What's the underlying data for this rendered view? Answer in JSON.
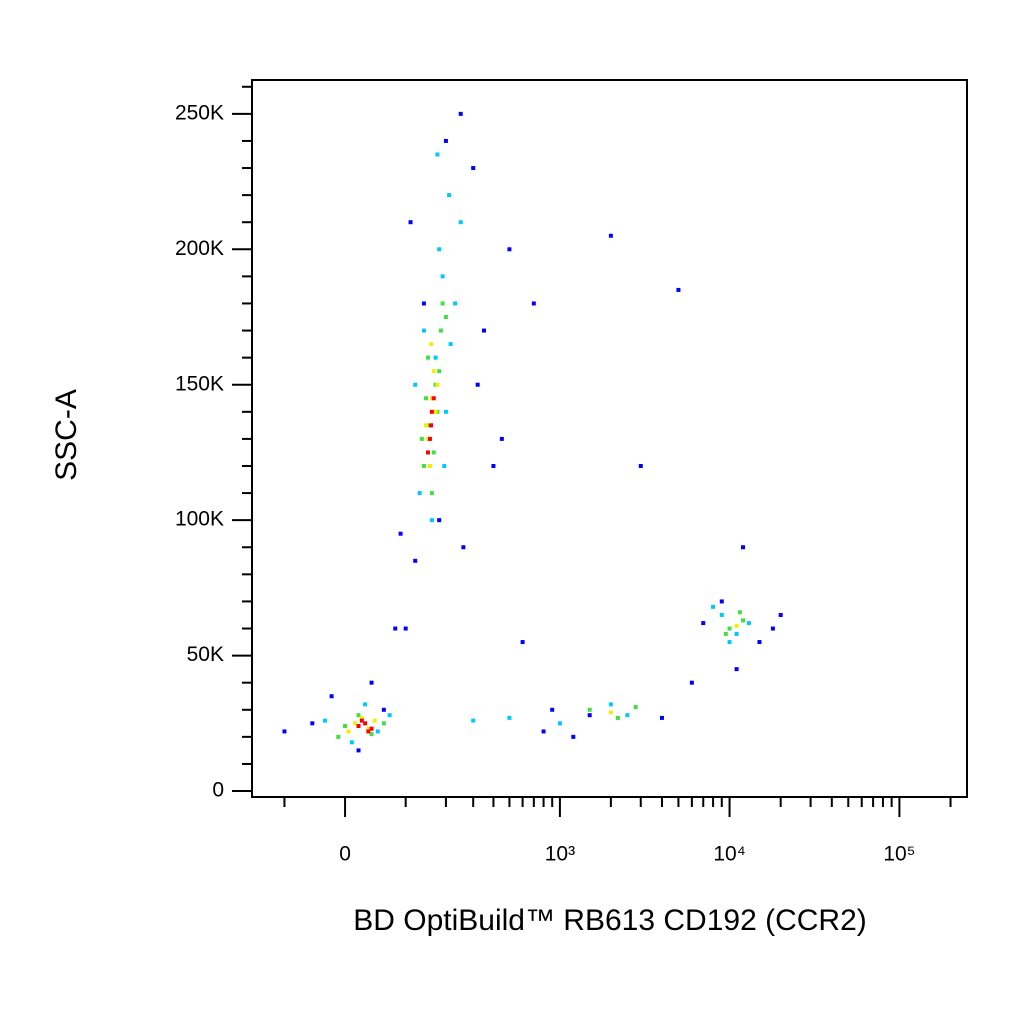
{
  "chart_data": {
    "type": "scatter",
    "xlabel": "BD OptiBuild™ RB613 CD192 (CCR2)",
    "ylabel": "SSC-A",
    "xscale": "asinh",
    "xlim": [
      -177,
      250000
    ],
    "ylim": [
      -2200,
      262500
    ],
    "xticks": [
      0,
      {
        "value": 1000,
        "label": "10³"
      },
      {
        "value": 10000,
        "label": "10⁴"
      },
      {
        "value": 100000,
        "label": "10⁵"
      }
    ],
    "xminorticks": [
      -100,
      100,
      200,
      300,
      400,
      500,
      600,
      700,
      800,
      900,
      2000,
      3000,
      4000,
      5000,
      6000,
      7000,
      8000,
      9000,
      20000,
      30000,
      40000,
      50000,
      60000,
      70000,
      80000,
      90000,
      200000
    ],
    "yticks": [
      0,
      {
        "value": 50000,
        "label": "50K"
      },
      {
        "value": 100000,
        "label": "100K"
      },
      {
        "value": 150000,
        "label": "150K"
      },
      {
        "value": 200000,
        "label": "200K"
      },
      {
        "value": 250000,
        "label": "250K"
      }
    ],
    "yminorticks": [
      10000,
      20000,
      30000,
      40000,
      60000,
      70000,
      80000,
      90000,
      110000,
      120000,
      130000,
      140000,
      160000,
      170000,
      180000,
      190000,
      210000,
      220000,
      230000,
      240000,
      260000
    ],
    "series": [
      {
        "color": "#0000ff",
        "x": [
          90,
          120,
          200,
          250,
          300,
          110,
          140,
          180,
          260,
          320,
          400,
          500,
          700,
          80,
          60,
          -50,
          -100,
          20,
          40,
          100,
          600,
          900,
          1500,
          2000,
          3000,
          5000,
          7000,
          9000,
          12000,
          15000,
          20000,
          18000,
          6000,
          4000,
          350,
          450,
          1200,
          800,
          11000,
          -20
        ],
        "values": [
          95000,
          85000,
          240000,
          250000,
          230000,
          210000,
          180000,
          100000,
          90000,
          150000,
          120000,
          200000,
          180000,
          60000,
          30000,
          25000,
          22000,
          15000,
          40000,
          60000,
          55000,
          30000,
          28000,
          205000,
          120000,
          185000,
          62000,
          70000,
          90000,
          55000,
          65000,
          60000,
          40000,
          27000,
          170000,
          130000,
          20000,
          22000,
          45000,
          35000
        ]
      },
      {
        "color": "#00c8ff",
        "x": [
          130,
          150,
          170,
          190,
          210,
          160,
          140,
          180,
          200,
          230,
          120,
          175,
          195,
          215,
          250,
          30,
          50,
          10,
          70,
          -30,
          300,
          500,
          1000,
          2000,
          2500,
          9000,
          11000,
          13000,
          10000,
          8000
        ],
        "values": [
          110000,
          130000,
          160000,
          190000,
          220000,
          100000,
          170000,
          200000,
          140000,
          180000,
          150000,
          235000,
          120000,
          165000,
          210000,
          32000,
          22000,
          18000,
          28000,
          26000,
          26000,
          27000,
          25000,
          32000,
          28000,
          65000,
          58000,
          62000,
          55000,
          68000
        ]
      },
      {
        "color": "#40e040",
        "x": [
          140,
          155,
          170,
          185,
          150,
          165,
          175,
          190,
          160,
          145,
          180,
          200,
          135,
          20,
          40,
          0,
          60,
          -10,
          1500,
          2200,
          2800,
          10000,
          12000,
          9500,
          11500
        ],
        "values": [
          120000,
          135000,
          150000,
          170000,
          160000,
          125000,
          140000,
          180000,
          110000,
          145000,
          155000,
          175000,
          130000,
          28000,
          21000,
          24000,
          25000,
          20000,
          30000,
          27000,
          31000,
          60000,
          63000,
          58000,
          66000
        ]
      },
      {
        "color": "#f0f000",
        "x": [
          150,
          160,
          165,
          155,
          170,
          145,
          175,
          158,
          15,
          35,
          25,
          45,
          5,
          2000,
          11000
        ],
        "values": [
          130000,
          145000,
          155000,
          120000,
          140000,
          135000,
          150000,
          165000,
          25000,
          23000,
          27000,
          26000,
          22000,
          29000,
          61000
        ]
      },
      {
        "color": "#ff0000",
        "x": [
          155,
          160,
          150,
          165,
          158,
          20,
          30,
          40,
          25,
          35
        ],
        "values": [
          130000,
          140000,
          125000,
          145000,
          135000,
          24000,
          25000,
          23000,
          26000,
          22000
        ]
      }
    ]
  }
}
